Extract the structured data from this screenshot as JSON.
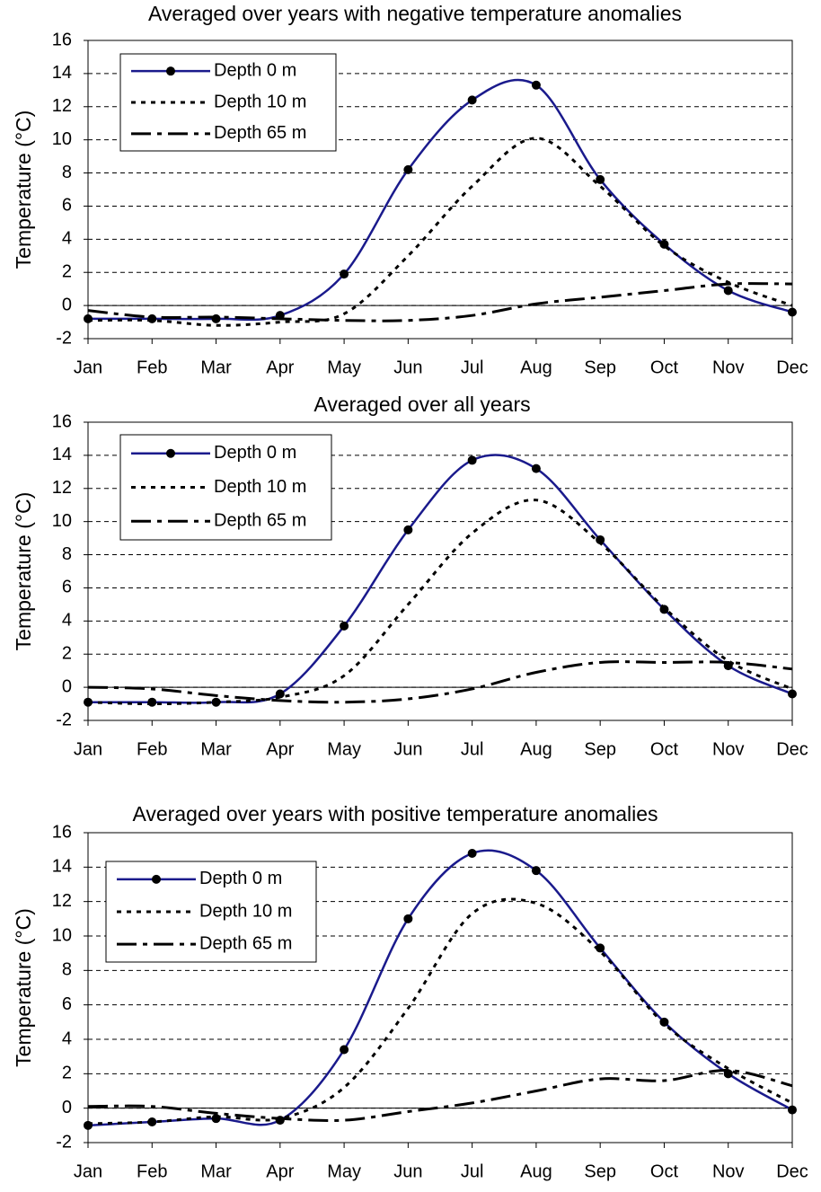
{
  "chart_data": [
    {
      "type": "line",
      "title": "Averaged over years with negative temperature anomalies",
      "ylabel": "Temperature (°C)",
      "categories": [
        "Jan",
        "Feb",
        "Mar",
        "Apr",
        "May",
        "Jun",
        "Jul",
        "Aug",
        "Sep",
        "Oct",
        "Nov",
        "Dec"
      ],
      "ylim": [
        -2,
        16
      ],
      "yticks": [
        -2,
        0,
        2,
        4,
        6,
        8,
        10,
        12,
        14,
        16
      ],
      "grid": true,
      "legend": "upper left",
      "series": [
        {
          "name": "Depth 0 m",
          "color": "#1a1a8c",
          "dash": "solid",
          "marker": "circle",
          "values": [
            -0.8,
            -0.8,
            -0.8,
            -0.6,
            1.9,
            8.2,
            12.4,
            13.3,
            7.6,
            3.7,
            0.9,
            -0.4
          ]
        },
        {
          "name": "Depth 10 m",
          "color": "#000000",
          "dash": "dotted",
          "values": [
            -0.9,
            -0.9,
            -1.2,
            -1.0,
            -0.5,
            3.0,
            7.2,
            10.1,
            7.2,
            3.6,
            1.4,
            0.0
          ]
        },
        {
          "name": "Depth 65 m",
          "color": "#000000",
          "dash": "dashdot",
          "values": [
            -0.3,
            -0.7,
            -0.7,
            -0.8,
            -0.9,
            -0.9,
            -0.6,
            0.1,
            0.5,
            0.9,
            1.3,
            1.3
          ]
        }
      ]
    },
    {
      "type": "line",
      "title": "Averaged over all years",
      "ylabel": "Temperature (°C)",
      "categories": [
        "Jan",
        "Feb",
        "Mar",
        "Apr",
        "May",
        "Jun",
        "Jul",
        "Aug",
        "Sep",
        "Oct",
        "Nov",
        "Dec"
      ],
      "ylim": [
        -2,
        16
      ],
      "yticks": [
        -2,
        0,
        2,
        4,
        6,
        8,
        10,
        12,
        14,
        16
      ],
      "grid": true,
      "legend": "upper left",
      "series": [
        {
          "name": "Depth 0 m",
          "color": "#1a1a8c",
          "dash": "solid",
          "marker": "circle",
          "values": [
            -0.9,
            -0.9,
            -0.9,
            -0.4,
            3.7,
            9.5,
            13.7,
            13.2,
            8.9,
            4.7,
            1.3,
            -0.4
          ]
        },
        {
          "name": "Depth 10 m",
          "color": "#000000",
          "dash": "dotted",
          "values": [
            -0.9,
            -1.0,
            -0.9,
            -0.6,
            0.7,
            5.0,
            9.3,
            11.3,
            8.7,
            4.8,
            1.6,
            -0.1
          ]
        },
        {
          "name": "Depth 65 m",
          "color": "#000000",
          "dash": "dashdot",
          "values": [
            0.0,
            -0.1,
            -0.5,
            -0.8,
            -0.9,
            -0.7,
            -0.1,
            0.9,
            1.5,
            1.5,
            1.5,
            1.1
          ]
        }
      ]
    },
    {
      "type": "line",
      "title": "Averaged over years with positive temperature anomalies",
      "ylabel": "Temperature (°C)",
      "categories": [
        "Jan",
        "Feb",
        "Mar",
        "Apr",
        "May",
        "Jun",
        "Jul",
        "Aug",
        "Sep",
        "Oct",
        "Nov",
        "Dec"
      ],
      "ylim": [
        -2,
        16
      ],
      "yticks": [
        -2,
        0,
        2,
        4,
        6,
        8,
        10,
        12,
        14,
        16
      ],
      "grid": true,
      "legend": "upper left",
      "series": [
        {
          "name": "Depth 0 m",
          "color": "#1a1a8c",
          "dash": "solid",
          "marker": "circle",
          "values": [
            -1.0,
            -0.8,
            -0.6,
            -0.7,
            3.4,
            11.0,
            14.8,
            13.8,
            9.3,
            5.0,
            2.0,
            -0.1
          ]
        },
        {
          "name": "Depth 10 m",
          "color": "#000000",
          "dash": "dotted",
          "values": [
            -0.9,
            -0.8,
            -0.5,
            -0.6,
            1.2,
            5.8,
            11.3,
            11.9,
            9.1,
            4.9,
            2.3,
            0.3
          ]
        },
        {
          "name": "Depth 65 m",
          "color": "#000000",
          "dash": "dashdot",
          "values": [
            0.1,
            0.1,
            -0.3,
            -0.6,
            -0.7,
            -0.2,
            0.3,
            1.0,
            1.7,
            1.6,
            2.2,
            1.3
          ]
        }
      ]
    }
  ]
}
